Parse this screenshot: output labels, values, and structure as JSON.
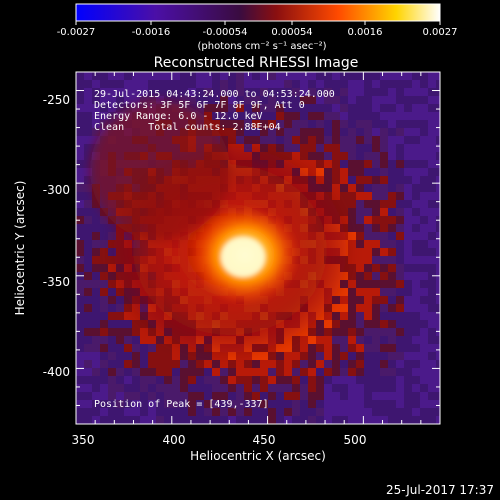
{
  "colorbar": {
    "ticks": [
      "-0.0027",
      "-0.0016",
      "-0.00054",
      "0.00054",
      "0.0016",
      "0.0027"
    ],
    "units": "(photons cm⁻² s⁻¹ asec⁻²)",
    "colors": [
      "#0000ff",
      "#4b0fa6",
      "#5a1a78",
      "#a01010",
      "#ff4a00",
      "#ffd400",
      "#ffffff"
    ]
  },
  "plot": {
    "title": "Reconstructed RHESSI Image",
    "xlabel": "Heliocentric X (arcsec)",
    "ylabel": "Heliocentric Y (arcsec)",
    "x_ticks": [
      "350",
      "400",
      "450",
      "500"
    ],
    "y_ticks": [
      "-250",
      "-300",
      "-350",
      "-400"
    ],
    "xlim": [
      350,
      540
    ],
    "ylim": [
      -430,
      -240
    ]
  },
  "annotations": {
    "time_range": "29-Jul-2015 04:43:24.000 to 04:53:24.000",
    "detectors": "Detectors: 3F 5F 6F 7F 8F 9F, Att 0",
    "energy": "Energy Range: 6.0 - 12.0 keV",
    "method": "Clean    Total counts: 2.88E+04",
    "peak": "Position of Peak = [439,-337]"
  },
  "footer": {
    "timestamp": "25-Jul-2017 17:37"
  },
  "image_data": {
    "peak": [
      439,
      -337
    ],
    "background_color": "#4a1a7a",
    "emission_color": "#ff3a00"
  }
}
